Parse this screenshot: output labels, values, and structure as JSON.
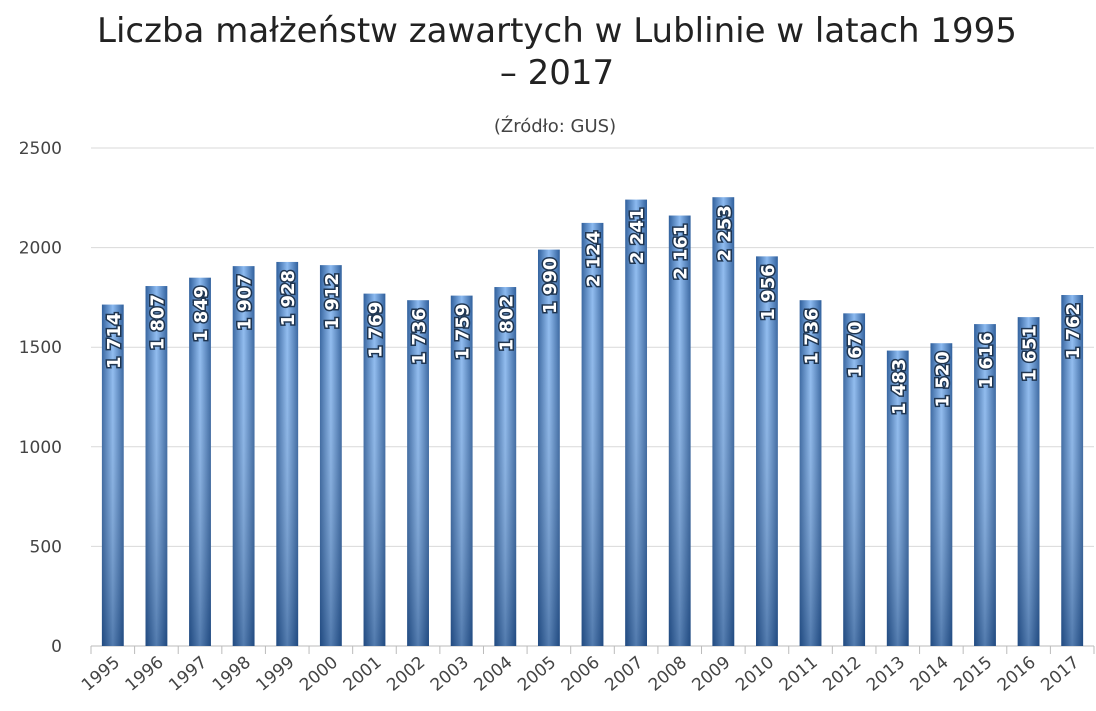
{
  "chart_data": {
    "type": "bar",
    "title": "Liczba małżeństw zawartych w Lublinie w latach 1995 – 2017",
    "subtitle": "(Źródło: GUS)",
    "categories": [
      "1995",
      "1996",
      "1997",
      "1998",
      "1999",
      "2000",
      "2001",
      "2002",
      "2003",
      "2004",
      "2005",
      "2006",
      "2007",
      "2008",
      "2009",
      "2010",
      "2011",
      "2012",
      "2013",
      "2014",
      "2015",
      "2016",
      "2017"
    ],
    "values": [
      1714,
      1807,
      1849,
      1907,
      1928,
      1912,
      1769,
      1736,
      1759,
      1802,
      1990,
      2124,
      2241,
      2161,
      2253,
      1956,
      1736,
      1670,
      1483,
      1520,
      1616,
      1651,
      1762
    ],
    "value_labels": [
      "1 714",
      "1 807",
      "1 849",
      "1 907",
      "1 928",
      "1 912",
      "1 769",
      "1 736",
      "1 759",
      "1 802",
      "1 990",
      "2 124",
      "2 241",
      "2 161",
      "2 253",
      "1 956",
      "1 736",
      "1 670",
      "1 483",
      "1 520",
      "1 616",
      "1 651",
      "1 762"
    ],
    "color": "#4a80c4",
    "ylim": [
      0,
      2500
    ],
    "yticks": [
      0,
      500,
      1000,
      1500,
      2000,
      2500
    ],
    "grid": true
  }
}
